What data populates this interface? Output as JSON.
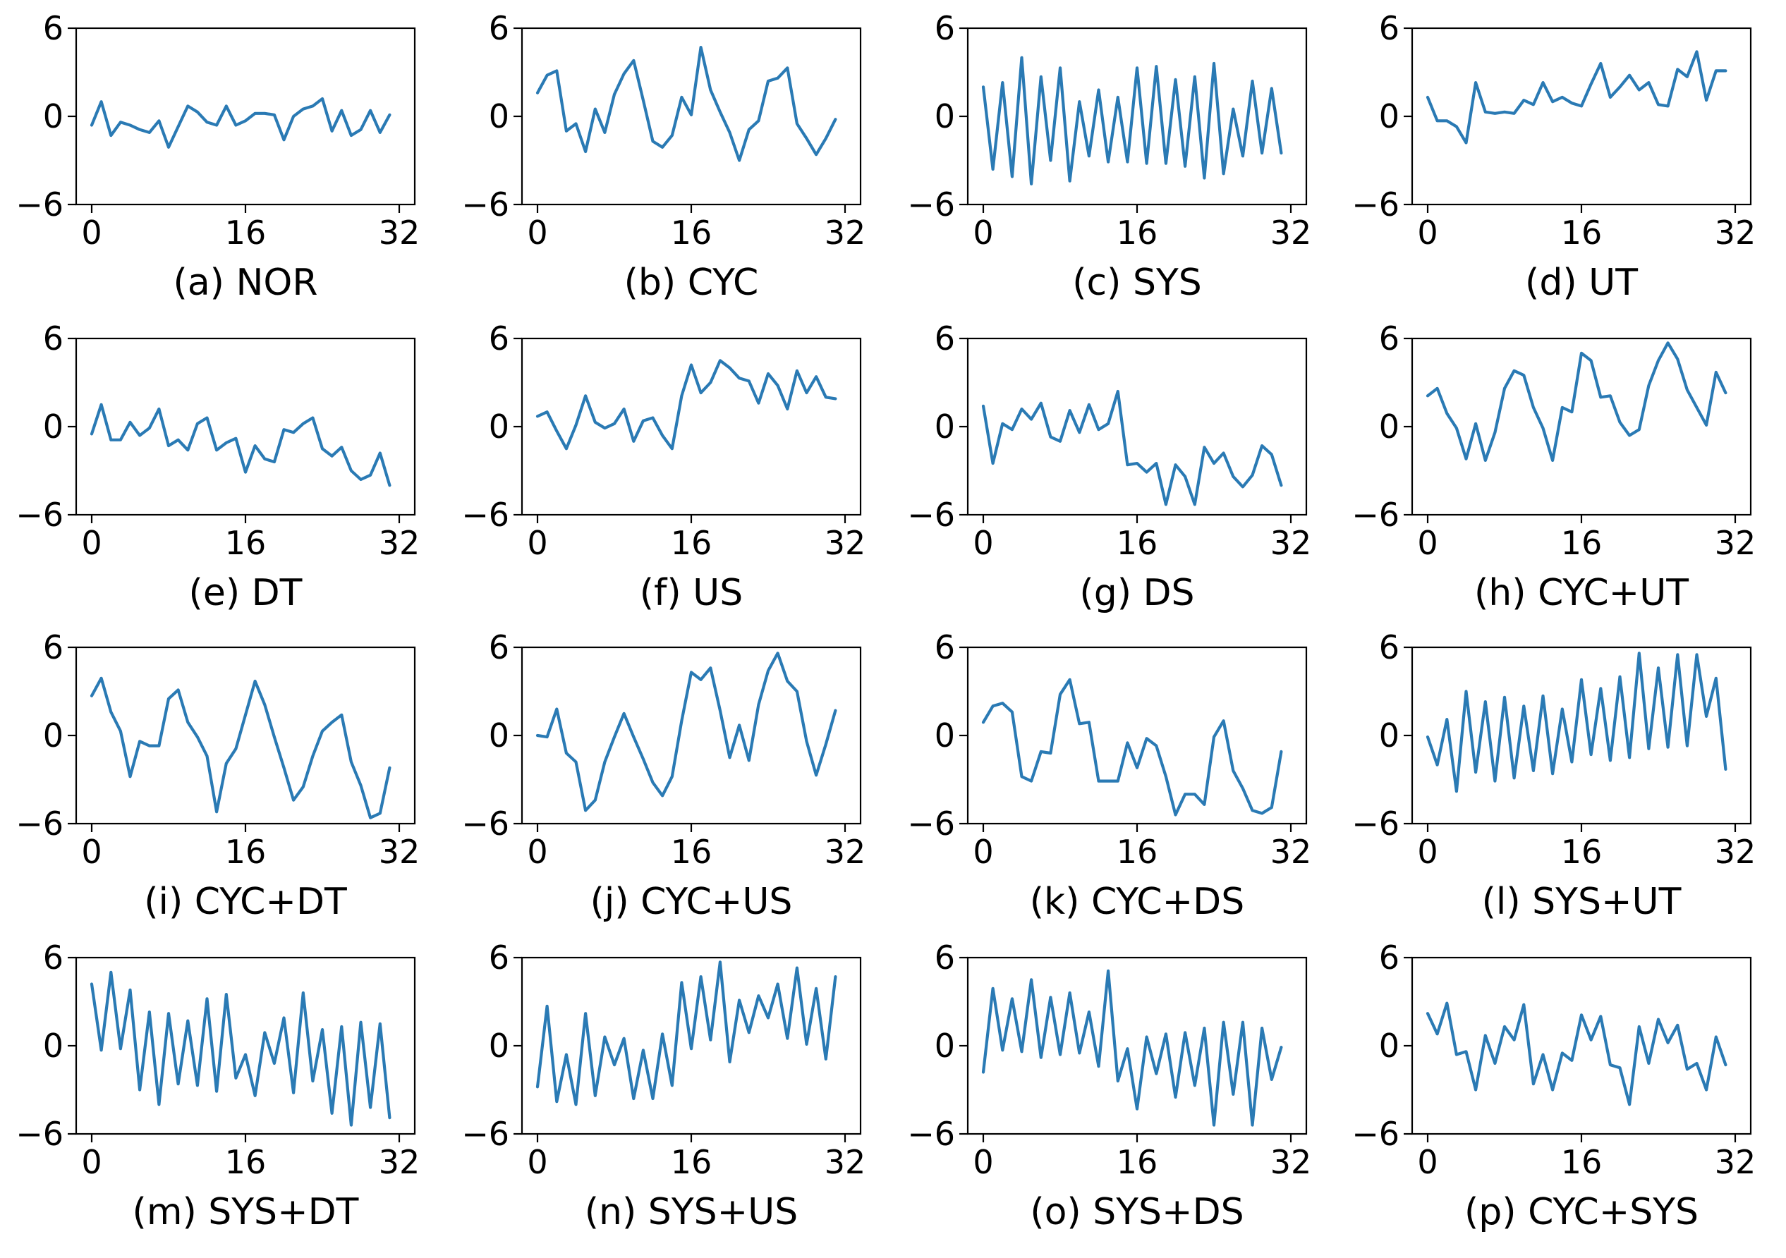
{
  "figure": {
    "line_color": "#2a7ab4"
  },
  "chart_data": [
    {
      "type": "line",
      "caption": "(a) NOR",
      "xlim": [
        0,
        32
      ],
      "ylim": [
        -6,
        6
      ],
      "xticks": [
        "0",
        "16",
        "32"
      ],
      "yticks": [
        "6",
        "0",
        "−6"
      ],
      "values": [
        -0.6,
        1.0,
        -1.3,
        -0.4,
        -0.6,
        -0.9,
        -1.1,
        -0.3,
        -2.1,
        -0.7,
        0.7,
        0.3,
        -0.4,
        -0.6,
        0.7,
        -0.6,
        -0.3,
        0.2,
        0.2,
        0.1,
        -1.6,
        0.0,
        0.5,
        0.7,
        1.2,
        -1.0,
        0.4,
        -1.3,
        -0.9,
        0.4,
        -1.1,
        0.1
      ]
    },
    {
      "type": "line",
      "caption": "(b) CYC",
      "xlim": [
        0,
        32
      ],
      "ylim": [
        -6,
        6
      ],
      "xticks": [
        "0",
        "16",
        "32"
      ],
      "yticks": [
        "6",
        "0",
        "−6"
      ],
      "values": [
        1.6,
        2.8,
        3.1,
        -1.0,
        -0.5,
        -2.4,
        0.5,
        -1.1,
        1.5,
        2.9,
        3.8,
        1.1,
        -1.7,
        -2.1,
        -1.3,
        1.3,
        0.1,
        4.7,
        1.8,
        0.3,
        -1.1,
        -3.0,
        -0.9,
        -0.3,
        2.4,
        2.6,
        3.3,
        -0.5,
        -1.5,
        -2.6,
        -1.5,
        -0.2
      ]
    },
    {
      "type": "line",
      "caption": "(c) SYS",
      "xlim": [
        0,
        32
      ],
      "ylim": [
        -6,
        6
      ],
      "xticks": [
        "0",
        "16",
        "32"
      ],
      "yticks": [
        "6",
        "0",
        "−6"
      ],
      "values": [
        2.0,
        -3.6,
        2.3,
        -4.1,
        4.0,
        -4.6,
        2.7,
        -3.0,
        3.3,
        -4.4,
        1.0,
        -2.7,
        1.8,
        -3.1,
        1.3,
        -3.1,
        3.3,
        -3.2,
        3.4,
        -3.2,
        2.5,
        -3.4,
        2.7,
        -4.2,
        3.6,
        -3.9,
        0.5,
        -2.7,
        2.4,
        -2.5,
        1.9,
        -2.5
      ]
    },
    {
      "type": "line",
      "caption": "(d) UT",
      "xlim": [
        0,
        32
      ],
      "ylim": [
        -6,
        6
      ],
      "xticks": [
        "0",
        "16",
        "32"
      ],
      "yticks": [
        "6",
        "0",
        "−6"
      ],
      "values": [
        1.3,
        -0.3,
        -0.3,
        -0.7,
        -1.8,
        2.3,
        0.3,
        0.2,
        0.3,
        0.2,
        1.1,
        0.8,
        2.3,
        1.0,
        1.3,
        0.9,
        0.7,
        2.2,
        3.6,
        1.3,
        2.0,
        2.8,
        1.8,
        2.3,
        0.8,
        0.7,
        3.2,
        2.7,
        4.4,
        1.1,
        3.1,
        3.1
      ]
    },
    {
      "type": "line",
      "caption": "(e) DT",
      "xlim": [
        0,
        32
      ],
      "ylim": [
        -6,
        6
      ],
      "xticks": [
        "0",
        "16",
        "32"
      ],
      "yticks": [
        "6",
        "0",
        "−6"
      ],
      "values": [
        -0.5,
        1.5,
        -0.9,
        -0.9,
        0.3,
        -0.6,
        -0.1,
        1.2,
        -1.3,
        -0.9,
        -1.6,
        0.2,
        0.6,
        -1.6,
        -1.1,
        -0.8,
        -3.1,
        -1.3,
        -2.2,
        -2.4,
        -0.2,
        -0.4,
        0.2,
        0.6,
        -1.5,
        -2.0,
        -1.4,
        -3.0,
        -3.6,
        -3.3,
        -1.8,
        -4.0
      ]
    },
    {
      "type": "line",
      "caption": "(f) US",
      "xlim": [
        0,
        32
      ],
      "ylim": [
        -6,
        6
      ],
      "xticks": [
        "0",
        "16",
        "32"
      ],
      "yticks": [
        "6",
        "0",
        "−6"
      ],
      "values": [
        0.7,
        1.0,
        -0.3,
        -1.5,
        0.1,
        2.1,
        0.3,
        -0.1,
        0.2,
        1.2,
        -1.0,
        0.4,
        0.6,
        -0.6,
        -1.5,
        2.1,
        4.2,
        2.3,
        3.0,
        4.5,
        4.0,
        3.3,
        3.1,
        1.6,
        3.6,
        2.8,
        1.2,
        3.8,
        2.3,
        3.4,
        2.0,
        1.9
      ]
    },
    {
      "type": "line",
      "caption": "(g) DS",
      "xlim": [
        0,
        32
      ],
      "ylim": [
        -6,
        6
      ],
      "xticks": [
        "0",
        "16",
        "32"
      ],
      "yticks": [
        "6",
        "0",
        "−6"
      ],
      "values": [
        1.4,
        -2.5,
        0.2,
        -0.2,
        1.2,
        0.5,
        1.6,
        -0.7,
        -1.0,
        1.1,
        -0.4,
        1.5,
        -0.2,
        0.2,
        2.4,
        -2.6,
        -2.5,
        -3.1,
        -2.5,
        -5.3,
        -2.6,
        -3.4,
        -5.3,
        -1.4,
        -2.5,
        -1.8,
        -3.4,
        -4.1,
        -3.3,
        -1.3,
        -1.9,
        -4.0
      ]
    },
    {
      "type": "line",
      "caption": "(h) CYC+UT",
      "xlim": [
        0,
        32
      ],
      "ylim": [
        -6,
        6
      ],
      "xticks": [
        "0",
        "16",
        "32"
      ],
      "yticks": [
        "6",
        "0",
        "−6"
      ],
      "values": [
        2.1,
        2.6,
        0.9,
        -0.1,
        -2.2,
        0.2,
        -2.3,
        -0.4,
        2.6,
        3.8,
        3.5,
        1.3,
        -0.1,
        -2.3,
        1.3,
        1.0,
        5.0,
        4.5,
        2.0,
        2.1,
        0.3,
        -0.6,
        -0.2,
        2.8,
        4.5,
        5.7,
        4.6,
        2.5,
        1.3,
        0.1,
        3.7,
        2.3
      ]
    },
    {
      "type": "line",
      "caption": "(i) CYC+DT",
      "xlim": [
        0,
        32
      ],
      "ylim": [
        -6,
        6
      ],
      "xticks": [
        "0",
        "16",
        "32"
      ],
      "yticks": [
        "6",
        "0",
        "−6"
      ],
      "values": [
        2.7,
        3.9,
        1.6,
        0.3,
        -2.8,
        -0.4,
        -0.7,
        -0.7,
        2.5,
        3.1,
        0.9,
        -0.1,
        -1.4,
        -5.2,
        -1.9,
        -0.9,
        1.4,
        3.7,
        2.1,
        -0.1,
        -2.2,
        -4.4,
        -3.5,
        -1.4,
        0.3,
        0.9,
        1.4,
        -1.8,
        -3.4,
        -5.6,
        -5.3,
        -2.2
      ]
    },
    {
      "type": "line",
      "caption": "(j) CYC+US",
      "xlim": [
        0,
        32
      ],
      "ylim": [
        -6,
        6
      ],
      "xticks": [
        "0",
        "16",
        "32"
      ],
      "yticks": [
        "6",
        "0",
        "−6"
      ],
      "values": [
        0.0,
        -0.1,
        1.8,
        -1.2,
        -1.8,
        -5.1,
        -4.4,
        -1.8,
        -0.1,
        1.5,
        -0.1,
        -1.6,
        -3.2,
        -4.1,
        -2.8,
        1.0,
        4.3,
        3.8,
        4.6,
        1.7,
        -1.5,
        0.7,
        -1.7,
        2.1,
        4.4,
        5.6,
        3.7,
        3.0,
        -0.4,
        -2.7,
        -0.6,
        1.7
      ]
    },
    {
      "type": "line",
      "caption": "(k) CYC+DS",
      "xlim": [
        0,
        32
      ],
      "ylim": [
        -6,
        6
      ],
      "xticks": [
        "0",
        "16",
        "32"
      ],
      "yticks": [
        "6",
        "0",
        "−6"
      ],
      "values": [
        0.9,
        2.0,
        2.2,
        1.6,
        -2.8,
        -3.1,
        -1.1,
        -1.2,
        2.8,
        3.8,
        0.8,
        0.9,
        -3.1,
        -3.1,
        -3.1,
        -0.5,
        -2.2,
        -0.2,
        -0.7,
        -2.8,
        -5.4,
        -4.0,
        -4.0,
        -4.7,
        -0.1,
        1.0,
        -2.4,
        -3.6,
        -5.1,
        -5.3,
        -4.9,
        -1.1
      ]
    },
    {
      "type": "line",
      "caption": "(l) SYS+UT",
      "xlim": [
        0,
        32
      ],
      "ylim": [
        -6,
        6
      ],
      "xticks": [
        "0",
        "16",
        "32"
      ],
      "yticks": [
        "6",
        "0",
        "−6"
      ],
      "values": [
        -0.1,
        -2.0,
        1.1,
        -3.8,
        3.0,
        -2.5,
        2.3,
        -3.1,
        2.6,
        -2.9,
        2.0,
        -2.4,
        2.7,
        -2.6,
        1.8,
        -1.8,
        3.8,
        -1.3,
        3.2,
        -1.7,
        4.0,
        -1.5,
        5.6,
        -0.9,
        4.6,
        -0.8,
        5.5,
        -0.7,
        5.5,
        1.3,
        3.9,
        -2.3
      ]
    },
    {
      "type": "line",
      "caption": "(m) SYS+DT",
      "xlim": [
        0,
        32
      ],
      "ylim": [
        -6,
        6
      ],
      "xticks": [
        "0",
        "16",
        "32"
      ],
      "yticks": [
        "6",
        "0",
        "−6"
      ],
      "values": [
        4.2,
        -0.3,
        5.0,
        -0.2,
        3.8,
        -3.0,
        2.3,
        -4.0,
        2.2,
        -2.6,
        1.7,
        -2.7,
        3.2,
        -3.1,
        3.5,
        -2.2,
        -0.6,
        -3.4,
        0.9,
        -1.2,
        1.9,
        -3.2,
        3.6,
        -2.4,
        1.1,
        -4.6,
        1.3,
        -5.4,
        1.6,
        -4.2,
        1.5,
        -4.9
      ]
    },
    {
      "type": "line",
      "caption": "(n) SYS+US",
      "xlim": [
        0,
        32
      ],
      "ylim": [
        -6,
        6
      ],
      "xticks": [
        "0",
        "16",
        "32"
      ],
      "yticks": [
        "6",
        "0",
        "−6"
      ],
      "values": [
        -2.8,
        2.7,
        -3.8,
        -0.6,
        -4.0,
        2.2,
        -3.4,
        0.6,
        -1.3,
        0.5,
        -3.6,
        -0.3,
        -3.6,
        0.8,
        -2.7,
        4.3,
        -0.2,
        4.7,
        0.4,
        5.7,
        -1.1,
        3.1,
        0.9,
        3.4,
        1.9,
        4.2,
        0.5,
        5.3,
        0.1,
        3.9,
        -0.9,
        4.7
      ]
    },
    {
      "type": "line",
      "caption": "(o) SYS+DS",
      "xlim": [
        0,
        32
      ],
      "ylim": [
        -6,
        6
      ],
      "xticks": [
        "0",
        "16",
        "32"
      ],
      "yticks": [
        "6",
        "0",
        "−6"
      ],
      "values": [
        -1.8,
        3.9,
        -0.3,
        3.2,
        -0.4,
        4.5,
        -0.8,
        3.3,
        -0.6,
        3.6,
        -0.5,
        2.3,
        -1.4,
        5.1,
        -2.4,
        -0.2,
        -4.3,
        0.6,
        -1.9,
        0.8,
        -3.5,
        0.9,
        -2.7,
        1.2,
        -5.4,
        1.6,
        -3.3,
        1.6,
        -5.4,
        1.2,
        -2.3,
        -0.1
      ]
    },
    {
      "type": "line",
      "caption": "(p) CYC+SYS",
      "xlim": [
        0,
        32
      ],
      "ylim": [
        -6,
        6
      ],
      "xticks": [
        "0",
        "16",
        "32"
      ],
      "yticks": [
        "6",
        "0",
        "−6"
      ],
      "values": [
        2.2,
        0.8,
        2.9,
        -0.6,
        -0.4,
        -3.0,
        0.7,
        -1.2,
        1.3,
        0.4,
        2.8,
        -2.6,
        -0.6,
        -3.0,
        -0.5,
        -1.0,
        2.1,
        0.4,
        2.0,
        -1.3,
        -1.5,
        -4.0,
        1.3,
        -1.2,
        1.8,
        0.2,
        1.4,
        -1.6,
        -1.2,
        -3.0,
        0.6,
        -1.3
      ]
    }
  ]
}
